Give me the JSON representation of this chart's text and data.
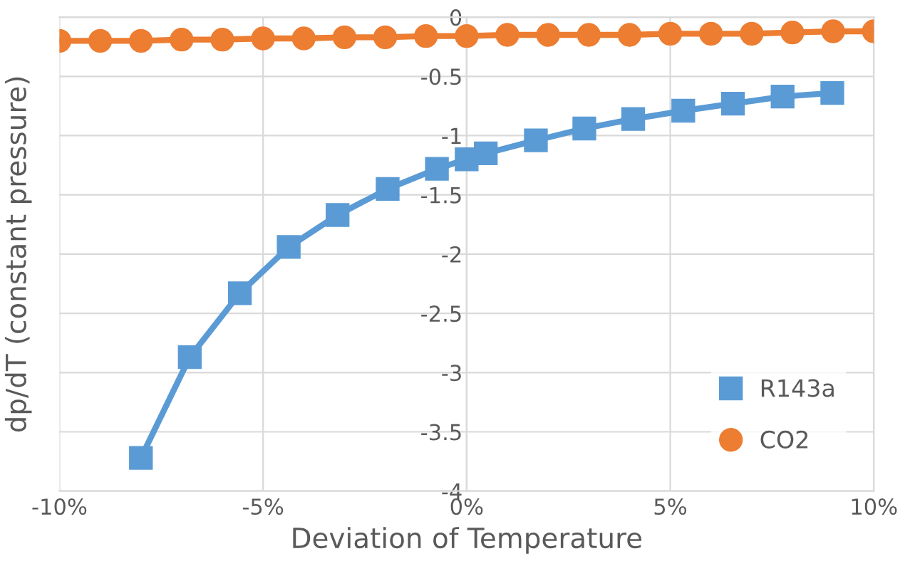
{
  "chart_data": {
    "type": "line",
    "xlabel": "Deviation of Temperature",
    "ylabel": "dp/dT (constant pressure)",
    "xlim": [
      -10,
      10
    ],
    "xticks": [
      {
        "value": -10,
        "label": "-10%"
      },
      {
        "value": -5,
        "label": "-5%"
      },
      {
        "value": 0,
        "label": "0%"
      },
      {
        "value": 5,
        "label": "5%"
      },
      {
        "value": 10,
        "label": "10%"
      }
    ],
    "ylim": [
      -4,
      0
    ],
    "yticks": [
      {
        "value": -4,
        "label": "-4"
      },
      {
        "value": -3.5,
        "label": "-3.5"
      },
      {
        "value": -3,
        "label": "-3"
      },
      {
        "value": -2.5,
        "label": "-2.5"
      },
      {
        "value": -2,
        "label": "-2"
      },
      {
        "value": -1.5,
        "label": "-1.5"
      },
      {
        "value": -1,
        "label": "-1"
      },
      {
        "value": -0.5,
        "label": "-0.5"
      },
      {
        "value": 0,
        "label": "0"
      }
    ],
    "grid": true,
    "legend": "bottom right",
    "series": [
      {
        "name": "R143a",
        "color": "#5b9bd5",
        "marker": "square",
        "x": [
          -8.0,
          -6.8,
          -5.57,
          -4.37,
          -3.17,
          -1.94,
          -0.73,
          0,
          0.47,
          1.7,
          2.89,
          4.09,
          5.32,
          6.54,
          7.76,
          8.98
        ],
        "values": [
          -3.72,
          -2.87,
          -2.33,
          -1.94,
          -1.67,
          -1.45,
          -1.28,
          -1.2,
          -1.15,
          -1.04,
          -0.94,
          -0.86,
          -0.79,
          -0.73,
          -0.67,
          -0.64
        ]
      },
      {
        "name": "CO2",
        "color": "#ed7d31",
        "marker": "circle",
        "x": [
          -10,
          -9,
          -8,
          -7,
          -6,
          -5,
          -4,
          -3,
          -2,
          -1,
          0,
          1,
          2,
          3,
          4,
          5,
          6,
          7,
          8,
          9,
          10
        ],
        "values": [
          -0.2,
          -0.2,
          -0.2,
          -0.19,
          -0.19,
          -0.18,
          -0.18,
          -0.17,
          -0.17,
          -0.16,
          -0.16,
          -0.15,
          -0.15,
          -0.15,
          -0.15,
          -0.14,
          -0.14,
          -0.14,
          -0.13,
          -0.12,
          -0.12
        ]
      }
    ]
  }
}
